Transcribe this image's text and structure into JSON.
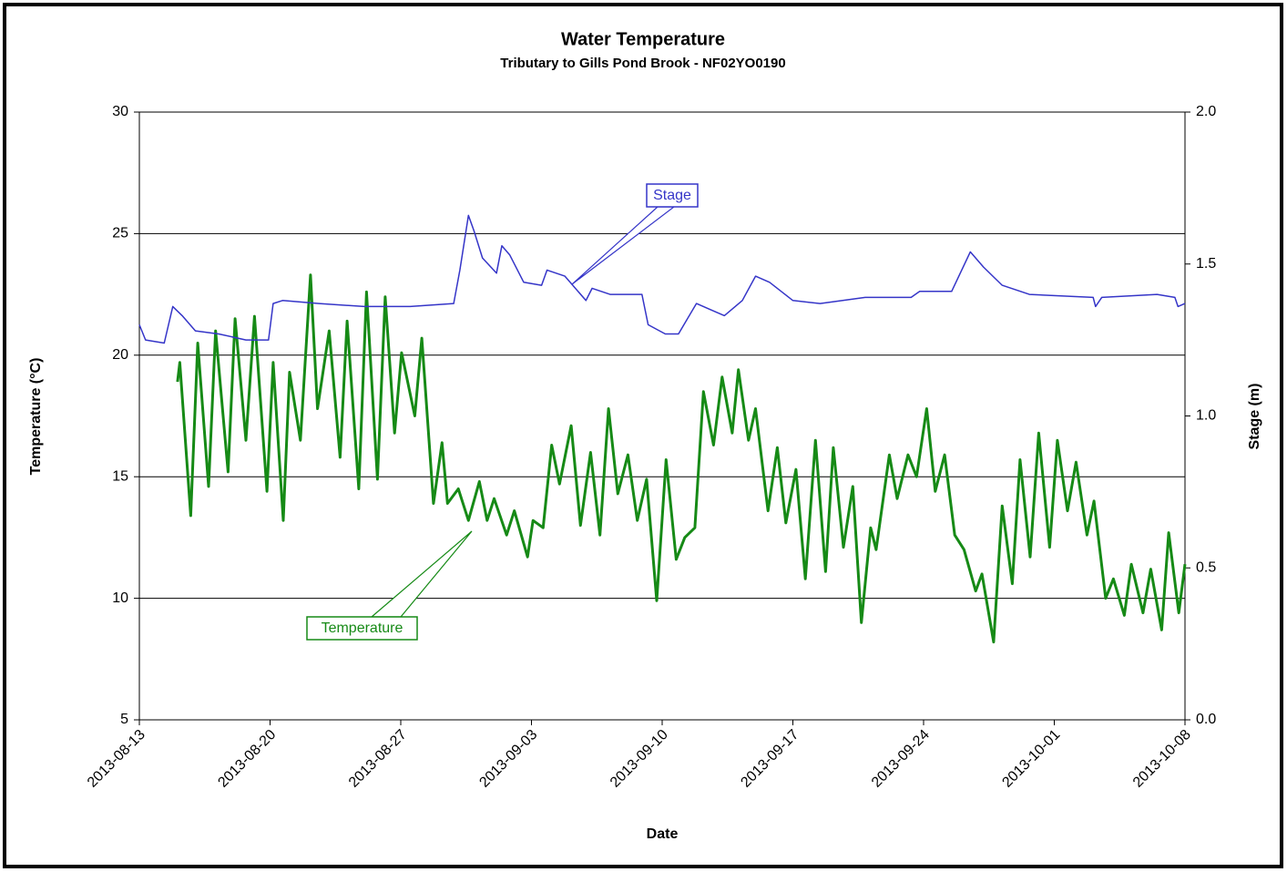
{
  "chart_data": {
    "type": "line",
    "title": "Water Temperature",
    "subtitle": "Tributary to Gills Pond Brook - NF02YO0190",
    "xlabel": "Date",
    "ylabel": "Temperature (°C)",
    "y2label": "Stage (m)",
    "xlim": [
      "2013-08-13",
      "2013-10-08"
    ],
    "xticks": [
      "2013-08-13",
      "2013-08-20",
      "2013-08-27",
      "2013-09-03",
      "2013-09-10",
      "2013-09-17",
      "2013-09-24",
      "2013-10-01",
      "2013-10-08"
    ],
    "ylim": [
      5,
      30
    ],
    "yticks": [
      5,
      10,
      15,
      20,
      25,
      30
    ],
    "y2lim": [
      0,
      2
    ],
    "y2ticks": [
      {
        "value": 0,
        "label": "0.0"
      },
      {
        "value": 0.5,
        "label": "0.5"
      },
      {
        "value": 1,
        "label": "1.0"
      },
      {
        "value": 1.5,
        "label": "1.5"
      },
      {
        "value": 2,
        "label": "2.0"
      }
    ],
    "grid": true,
    "series": [
      {
        "name": "Temperature",
        "color": "#168a16",
        "x": [
          "2013-08-15T01:00",
          "2013-08-15T04:00",
          "2013-08-15T18:00",
          "2013-08-16T03:00",
          "2013-08-16T17:00",
          "2013-08-17T02:00",
          "2013-08-17T18:00",
          "2013-08-18T03:00",
          "2013-08-18T17:00",
          "2013-08-19T04:00",
          "2013-08-19T20:00",
          "2013-08-20T04:00",
          "2013-08-20T17:00",
          "2013-08-21T01:00",
          "2013-08-21T15:00",
          "2013-08-22T04:00",
          "2013-08-22T13:00",
          "2013-08-23T04:00",
          "2013-08-23T18:00",
          "2013-08-24T03:00",
          "2013-08-24T18:00",
          "2013-08-25T04:00",
          "2013-08-25T18:00",
          "2013-08-26T04:00",
          "2013-08-26T16:00",
          "2013-08-27T01:00",
          "2013-08-27T18:00",
          "2013-08-28T03:00",
          "2013-08-28T18:00",
          "2013-08-29T05:00",
          "2013-08-29T12:00",
          "2013-08-30T02:00",
          "2013-08-30T15:00",
          "2013-08-31T05:00",
          "2013-08-31T15:00",
          "2013-09-01T00:00",
          "2013-09-01T16:00",
          "2013-09-02T02:00",
          "2013-09-02T19:00",
          "2013-09-03T02:00",
          "2013-09-03T15:00",
          "2013-09-04T02:00",
          "2013-09-04T12:00",
          "2013-09-05T03:00",
          "2013-09-05T15:00",
          "2013-09-06T04:00",
          "2013-09-06T16:00",
          "2013-09-07T03:00",
          "2013-09-07T15:00",
          "2013-09-08T04:00",
          "2013-09-08T16:00",
          "2013-09-09T04:00",
          "2013-09-09T17:00",
          "2013-09-10T05:00",
          "2013-09-10T18:00",
          "2013-09-11T05:00",
          "2013-09-11T18:00",
          "2013-09-12T05:00",
          "2013-09-12T18:00",
          "2013-09-13T05:00",
          "2013-09-13T18:00",
          "2013-09-14T02:00",
          "2013-09-14T15:00",
          "2013-09-15T00:00",
          "2013-09-15T16:00",
          "2013-09-16T04:00",
          "2013-09-16T15:00",
          "2013-09-17T04:00",
          "2013-09-17T16:00",
          "2013-09-18T05:00",
          "2013-09-18T18:00",
          "2013-09-19T04:00",
          "2013-09-19T17:00",
          "2013-09-20T05:00",
          "2013-09-20T16:00",
          "2013-09-21T04:00",
          "2013-09-21T11:00",
          "2013-09-22T04:00",
          "2013-09-22T14:00",
          "2013-09-23T04:00",
          "2013-09-23T15:00",
          "2013-09-24T04:00",
          "2013-09-24T15:00",
          "2013-09-25T03:00",
          "2013-09-25T16:00",
          "2013-09-26T04:00",
          "2013-09-26T19:00",
          "2013-09-27T03:00",
          "2013-09-27T18:00",
          "2013-09-28T05:00",
          "2013-09-28T18:00",
          "2013-09-29T04:00",
          "2013-09-29T17:00",
          "2013-09-30T04:00",
          "2013-09-30T18:00",
          "2013-10-01T04:00",
          "2013-10-01T17:00",
          "2013-10-02T04:00",
          "2013-10-02T18:00",
          "2013-10-03T03:00",
          "2013-10-03T18:00",
          "2013-10-04T04:00",
          "2013-10-04T18:00",
          "2013-10-05T03:00",
          "2013-10-05T18:00",
          "2013-10-06T04:00",
          "2013-10-06T18:00",
          "2013-10-07T03:00",
          "2013-10-07T16:00",
          "2013-10-08T00:00"
        ],
        "values": [
          18.9,
          19.7,
          13.4,
          20.5,
          14.6,
          21,
          15.2,
          21.5,
          16.5,
          21.6,
          14.4,
          19.7,
          13.2,
          19.3,
          16.5,
          23.3,
          17.8,
          21,
          15.8,
          21.4,
          14.5,
          22.6,
          14.9,
          22.4,
          16.8,
          20.1,
          17.5,
          20.7,
          13.9,
          16.4,
          13.9,
          14.5,
          13.2,
          14.8,
          13.2,
          14.1,
          12.6,
          13.6,
          11.7,
          13.2,
          12.9,
          16.3,
          14.7,
          17.1,
          13,
          16,
          12.6,
          17.8,
          14.3,
          15.9,
          13.2,
          14.9,
          9.9,
          15.7,
          11.6,
          12.5,
          12.9,
          18.5,
          16.3,
          19.1,
          16.8,
          19.4,
          16.5,
          17.8,
          13.6,
          16.2,
          13.1,
          15.3,
          10.8,
          16.5,
          11.1,
          16.2,
          12.1,
          14.6,
          9,
          12.9,
          12,
          15.9,
          14.1,
          15.9,
          15,
          17.8,
          14.4,
          15.9,
          12.6,
          12,
          10.3,
          11,
          8.2,
          13.8,
          10.6,
          15.7,
          11.7,
          16.8,
          12.1,
          16.5,
          13.6,
          15.6,
          12.6,
          14,
          10,
          10.8,
          9.3,
          11.4,
          9.4,
          11.2,
          8.7,
          12.7,
          9.4,
          11.4
        ]
      },
      {
        "name": "Stage",
        "color": "#3535c8",
        "axis": "y2",
        "x": [
          "2013-08-13T00:00",
          "2013-08-13T08:00",
          "2013-08-14T08:00",
          "2013-08-14T19:00",
          "2013-08-15T07:00",
          "2013-08-16T00:00",
          "2013-08-17T06:00",
          "2013-08-18T17:00",
          "2013-08-19T22:00",
          "2013-08-20T04:00",
          "2013-08-20T16:00",
          "2013-08-22T15:00",
          "2013-08-25T01:00",
          "2013-08-27T12:00",
          "2013-08-29T20:00",
          "2013-08-30T04:00",
          "2013-08-30T15:00",
          "2013-08-30T22:00",
          "2013-08-31T09:00",
          "2013-09-01T03:00",
          "2013-09-01T10:00",
          "2013-09-01T20:00",
          "2013-09-02T14:00",
          "2013-09-03T13:00",
          "2013-09-03T20:00",
          "2013-09-04T19:00",
          "2013-09-05T22:00",
          "2013-09-06T06:00",
          "2013-09-07T05:00",
          "2013-09-08T22:00",
          "2013-09-09T06:00",
          "2013-09-10T04:00",
          "2013-09-10T21:00",
          "2013-09-11T20:00",
          "2013-09-12T14:00",
          "2013-09-13T08:00",
          "2013-09-14T07:00",
          "2013-09-15T00:00",
          "2013-09-15T18:00",
          "2013-09-17T00:00",
          "2013-09-18T11:00",
          "2013-09-20T21:00",
          "2013-09-23T08:00",
          "2013-09-23T19:00",
          "2013-09-25T12:00",
          "2013-09-26T12:00",
          "2013-09-27T05:00",
          "2013-09-28T05:00",
          "2013-09-29T16:00",
          "2013-10-03T02:00",
          "2013-10-03T05:00",
          "2013-10-03T13:00",
          "2013-10-06T12:00",
          "2013-10-07T11:00",
          "2013-10-07T15:00",
          "2013-10-08T00:00"
        ],
        "values": [
          1.3,
          1.25,
          1.24,
          1.36,
          1.33,
          1.28,
          1.27,
          1.25,
          1.25,
          1.37,
          1.38,
          1.37,
          1.36,
          1.36,
          1.37,
          1.48,
          1.66,
          1.61,
          1.52,
          1.47,
          1.56,
          1.53,
          1.44,
          1.43,
          1.48,
          1.46,
          1.38,
          1.42,
          1.4,
          1.4,
          1.3,
          1.27,
          1.27,
          1.37,
          1.35,
          1.33,
          1.38,
          1.46,
          1.44,
          1.38,
          1.37,
          1.39,
          1.39,
          1.41,
          1.41,
          1.54,
          1.49,
          1.43,
          1.4,
          1.39,
          1.36,
          1.39,
          1.4,
          1.39,
          1.36,
          1.37
        ]
      }
    ]
  }
}
